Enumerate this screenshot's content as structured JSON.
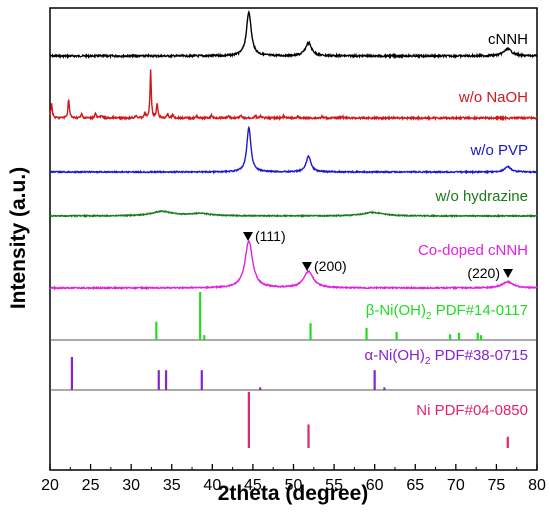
{
  "chart_data": {
    "type": "line",
    "xlabel": "2theta (degree)",
    "ylabel": "Intensity (a.u.)",
    "xlim": [
      20,
      80
    ],
    "xticks": [
      "20",
      "25",
      "30",
      "35",
      "40",
      "45",
      "50",
      "55",
      "60",
      "65",
      "70",
      "75",
      "80"
    ],
    "grid": false,
    "legend": "labels at right of each trace",
    "spectra": [
      {
        "name": "cNNH",
        "color": "#000000",
        "peaks": [
          [
            44.5,
            1.0,
            0.35
          ],
          [
            51.85,
            0.3,
            0.45
          ],
          [
            76.4,
            0.16,
            0.6
          ]
        ]
      },
      {
        "name": "w/o NaOH",
        "color": "#d01818",
        "peaks": [
          [
            20.2,
            0.3,
            0.1
          ],
          [
            22.3,
            0.4,
            0.1
          ],
          [
            23.9,
            0.08,
            0.1
          ],
          [
            25.6,
            0.1,
            0.1
          ],
          [
            26.3,
            0.06,
            0.1
          ],
          [
            30.6,
            0.06,
            0.1
          ],
          [
            31.7,
            0.1,
            0.1
          ],
          [
            32.4,
            1.0,
            0.09
          ],
          [
            33.2,
            0.3,
            0.1
          ],
          [
            34.5,
            0.08,
            0.1
          ],
          [
            35.1,
            0.07,
            0.1
          ],
          [
            38.1,
            0.04,
            0.1
          ],
          [
            39.9,
            0.06,
            0.1
          ],
          [
            42.0,
            0.04,
            0.1
          ],
          [
            43.5,
            0.05,
            0.1
          ],
          [
            45.3,
            0.05,
            0.1
          ],
          [
            46.0,
            0.04,
            0.1
          ],
          [
            48.8,
            0.04,
            0.1
          ],
          [
            50.5,
            0.03,
            0.1
          ],
          [
            53.5,
            0.03,
            0.1
          ],
          [
            56.0,
            0.03,
            0.1
          ]
        ]
      },
      {
        "name": "w/o PVP",
        "color": "#1a1ac8",
        "peaks": [
          [
            44.5,
            1.0,
            0.3
          ],
          [
            51.85,
            0.35,
            0.35
          ],
          [
            76.4,
            0.12,
            0.45
          ]
        ]
      },
      {
        "name": "w/o hydrazine",
        "color": "#1a7a1a",
        "peaks": [
          [
            33.8,
            0.15,
            1.5
          ],
          [
            38.5,
            0.08,
            1.5
          ],
          [
            59.8,
            0.12,
            1.5
          ]
        ]
      },
      {
        "name": "Co-doped cNNH",
        "color": "#e020e0",
        "peaks": [
          [
            44.5,
            1.0,
            0.55
          ],
          [
            51.85,
            0.35,
            0.7
          ],
          [
            76.4,
            0.13,
            0.8
          ]
        ]
      }
    ],
    "peak_markers": [
      {
        "x": 44.5,
        "label": "(111)"
      },
      {
        "x": 51.85,
        "label": "(200)"
      },
      {
        "x": 76.4,
        "label": "(220)"
      }
    ],
    "references": [
      {
        "label_main": "β-Ni(OH)",
        "label_sub": "2",
        "label_tail": " PDF#14-0117",
        "color": "#22dd22",
        "lines": [
          [
            33.1,
            0.38
          ],
          [
            38.5,
            1.0
          ],
          [
            39.0,
            0.1
          ],
          [
            52.1,
            0.35
          ],
          [
            59.0,
            0.25
          ],
          [
            62.7,
            0.17
          ],
          [
            69.3,
            0.12
          ],
          [
            70.4,
            0.15
          ],
          [
            72.7,
            0.15
          ],
          [
            73.1,
            0.1
          ]
        ]
      },
      {
        "label_main": "α-Ni(OH)",
        "label_sub": "2",
        "label_tail": " PDF#38-0715",
        "color": "#8822cc",
        "lines": [
          [
            22.7,
            1.0
          ],
          [
            33.4,
            0.6
          ],
          [
            34.3,
            0.6
          ],
          [
            38.7,
            0.6
          ],
          [
            45.9,
            0.08
          ],
          [
            60.0,
            0.6
          ],
          [
            61.2,
            0.08
          ]
        ]
      },
      {
        "label_main": "Ni PDF#04-0850",
        "label_sub": "",
        "label_tail": "",
        "color": "#e0246e",
        "lines": [
          [
            44.5,
            1.0
          ],
          [
            51.85,
            0.42
          ],
          [
            76.4,
            0.2
          ]
        ]
      }
    ]
  }
}
